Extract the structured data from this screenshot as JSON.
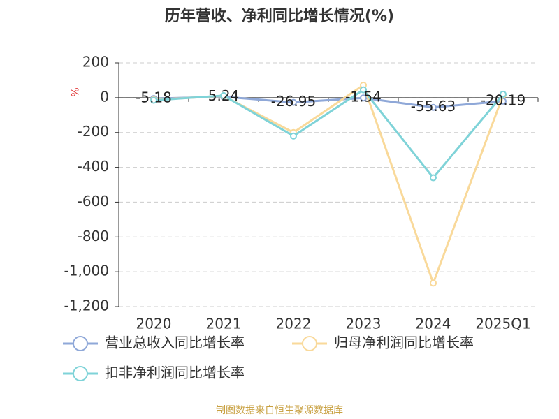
{
  "chart_data": {
    "type": "line",
    "title": "历年营收、净利同比增长情况(%)",
    "y_label": "%",
    "source": "制图数据来自恒生聚源数据库",
    "categories": [
      "2020",
      "2021",
      "2022",
      "2023",
      "2024",
      "2025Q1"
    ],
    "series": [
      {
        "name": "营业总收入同比增长率",
        "color": "#8fa8d8",
        "values": [
          -5.18,
          5.24,
          -26.95,
          -1.54,
          -55.63,
          -20.19
        ],
        "show_labels": true
      },
      {
        "name": "归母净利润同比增长率",
        "color": "#f9d99a",
        "values": [
          -12,
          10,
          -200,
          72,
          -1065,
          15
        ]
      },
      {
        "name": "扣非净利润同比增长率",
        "color": "#7fd3d8",
        "values": [
          -15,
          12,
          -220,
          45,
          -460,
          20
        ]
      }
    ],
    "ylim": [
      -1200,
      200
    ],
    "yticks": [
      200,
      0,
      -200,
      -400,
      -600,
      -800,
      {
        "value": -1000,
        "label": "-1,000"
      },
      {
        "value": -1200,
        "label": "-1,200"
      }
    ],
    "grid": true
  }
}
